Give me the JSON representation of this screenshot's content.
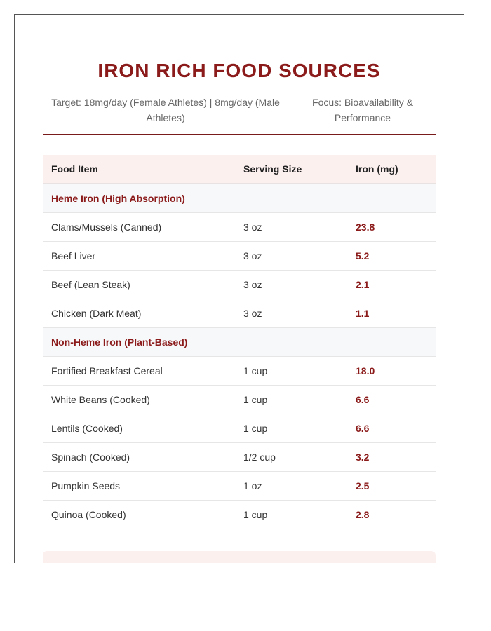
{
  "document": {
    "title": "IRON RICH FOOD SOURCES",
    "target": "Target: 18mg/day (Female Athletes) | 8mg/day (Male Athletes)",
    "focus": "Focus: Bioavailability & Performance"
  },
  "table": {
    "headers": {
      "food": "Food Item",
      "serving": "Serving Size",
      "iron": "Iron (mg)"
    },
    "groups": [
      {
        "label": "Heme Iron (High Absorption)",
        "rows": [
          {
            "food": "Clams/Mussels (Canned)",
            "serving": "3 oz",
            "iron": "23.8"
          },
          {
            "food": "Beef Liver",
            "serving": "3 oz",
            "iron": "5.2"
          },
          {
            "food": "Beef (Lean Steak)",
            "serving": "3 oz",
            "iron": "2.1"
          },
          {
            "food": "Chicken (Dark Meat)",
            "serving": "3 oz",
            "iron": "1.1"
          }
        ]
      },
      {
        "label": "Non-Heme Iron (Plant-Based)",
        "rows": [
          {
            "food": "Fortified Breakfast Cereal",
            "serving": "1 cup",
            "iron": "18.0"
          },
          {
            "food": "White Beans (Cooked)",
            "serving": "1 cup",
            "iron": "6.6"
          },
          {
            "food": "Lentils (Cooked)",
            "serving": "1 cup",
            "iron": "6.6"
          },
          {
            "food": "Spinach (Cooked)",
            "serving": "1/2 cup",
            "iron": "3.2"
          },
          {
            "food": "Pumpkin Seeds",
            "serving": "1 oz",
            "iron": "2.5"
          },
          {
            "food": "Quinoa (Cooked)",
            "serving": "1 cup",
            "iron": "2.8"
          }
        ]
      }
    ]
  },
  "colors": {
    "accent": "#8b1a1a",
    "header_bg": "#fcf0ef",
    "category_bg": "#f7f8fa"
  }
}
